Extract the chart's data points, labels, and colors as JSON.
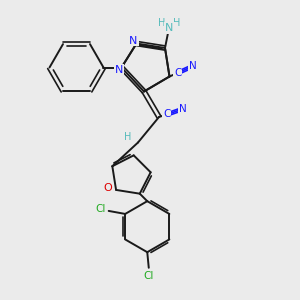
{
  "bg_color": "#ebebeb",
  "bond_color": "#1a1a1a",
  "N_color": "#1a1aff",
  "O_color": "#dd0000",
  "Cl_color": "#22aa22",
  "H_color": "#55bbbb",
  "CN_color": "#1a1aff",
  "figsize": [
    3.0,
    3.0
  ],
  "dpi": 100,
  "xlim": [
    0,
    10
  ],
  "ylim": [
    0,
    10
  ]
}
